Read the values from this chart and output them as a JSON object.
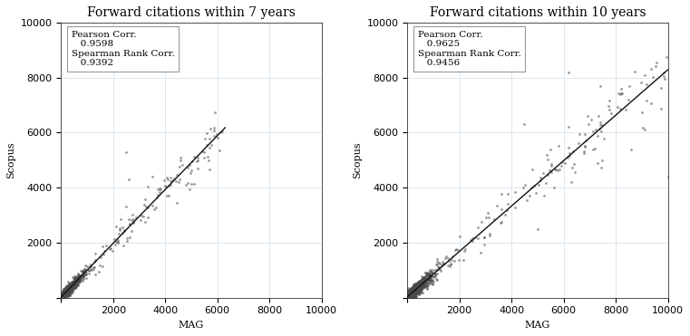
{
  "title_left": "Forward citations within 7 years",
  "title_right": "Forward citations within 10 years",
  "xlabel": "MAG",
  "ylabel": "Scopus",
  "xlim": [
    0,
    10000
  ],
  "ylim": [
    0,
    10000
  ],
  "xticks": [
    0,
    2000,
    4000,
    6000,
    8000,
    10000
  ],
  "yticks": [
    0,
    2000,
    4000,
    6000,
    8000,
    10000
  ],
  "pearson_left": "0.9598",
  "spearman_left": "0.9392",
  "pearson_right": "0.9625",
  "spearman_right": "0.9456",
  "dot_color": "#4a4a4a",
  "dot_size": 4,
  "dot_alpha": 0.55,
  "line_color": "#111111",
  "line_width": 1.0,
  "grid_color": "#dde8f0",
  "grid_alpha": 1.0,
  "background_color": "#ffffff",
  "fig_background": "#ffffff",
  "annotation_fontsize": 7.5,
  "title_fontsize": 10,
  "axis_label_fontsize": 8,
  "tick_fontsize": 8
}
